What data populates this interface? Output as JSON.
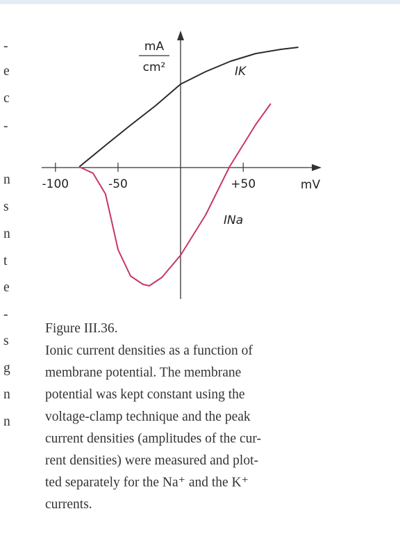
{
  "chart_data": {
    "type": "line",
    "x_label": "mV",
    "y_label": {
      "numerator": "mA",
      "denominator": "cm²"
    },
    "xlim": [
      -111,
      112
    ],
    "ylim": [
      -1.9,
      1.95
    ],
    "xticks": [
      -100,
      -50,
      {
        "value": 50,
        "label": "+50"
      }
    ],
    "series": [
      {
        "name": "IK",
        "color": "#2b2b2b",
        "x": [
          -81,
          -60,
          -40,
          -20,
          0,
          20,
          40,
          60,
          80,
          94
        ],
        "values": [
          0,
          0.31,
          0.6,
          0.88,
          1.19,
          1.37,
          1.52,
          1.63,
          1.69,
          1.72
        ]
      },
      {
        "name": "INa",
        "color": "#c8356a",
        "x": [
          -81,
          -70,
          -60,
          -55,
          -50,
          -40,
          -30,
          -25,
          -15,
          0,
          20,
          39,
          60,
          72
        ],
        "values": [
          0,
          -0.09,
          -0.39,
          -0.79,
          -1.19,
          -1.57,
          -1.69,
          -1.71,
          -1.59,
          -1.27,
          -0.69,
          0,
          0.61,
          0.91
        ]
      }
    ]
  },
  "caption": {
    "label": "Figure III.36.",
    "lines": [
      "Ionic current densities as a function of",
      "membrane potential. The membrane",
      "potential was kept constant using the",
      "voltage-clamp technique and the peak",
      "current densities (amplitudes of the cur-",
      "rent densities) were measured and plot-",
      "ted separately for the Na⁺ and the K⁺",
      "currents."
    ]
  },
  "margin_fragments": [
    "-",
    "e",
    "c",
    "-",
    "n",
    "s",
    "n",
    "t",
    "e",
    "-",
    "s",
    "g",
    "n",
    "n"
  ]
}
